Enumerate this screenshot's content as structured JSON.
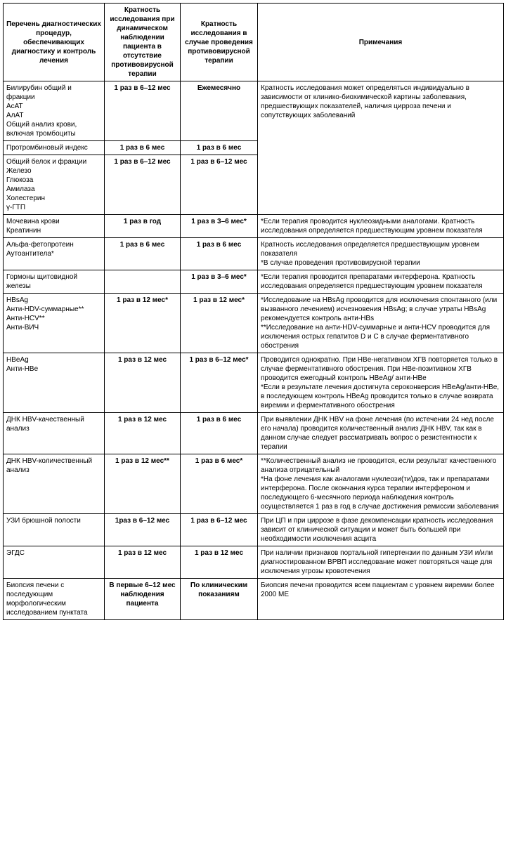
{
  "headers": {
    "h1": "Перечень диагностических процедур, обеспечивающих диагностику и контроль лечения",
    "h2": "Кратность исследования при динамическом наблюдении пациента в отсутствие противовирусной терапии",
    "h3": "Кратность исследования в случае проведения противовирусной терапии",
    "h4": "Примечания"
  },
  "rows": [
    {
      "c1": "Билирубин общий и фракции\nАсАТ\nАлАТ\nОбщий анализ крови, включая тромбоциты",
      "c2": "1 раз в 6–12 мес",
      "c3": "Ежемесячно",
      "c4": "Кратность исследования может определяться индивидуально в зависимости от клинико-биохимической картины заболевания, предшествующих показателей, наличия цирроза печени и сопутствующих заболеваний",
      "rowspan4": 3
    },
    {
      "c1": "Протромбиновый индекс",
      "c2": "1 раз в 6 мес",
      "c3": "1 раз в 6 мес"
    },
    {
      "c1": "Общий белок и фракции\nЖелезо\nГлюкоза\nАмилаза\nХолестерин\nγ-ГТП",
      "c2": "1 раз в 6–12 мес",
      "c3": "1 раз в 6–12 мес"
    },
    {
      "c1": "Мочевина крови\nКреатинин",
      "c2": "1 раз в год",
      "c3": "1 раз в 3–6 мес*",
      "c4": "*Если терапия проводится нуклеозидными аналогами. Кратность исследования определяется предшествующим уровнем показателя"
    },
    {
      "c1": "Альфа-фетопротеин\nАутоантитела*",
      "c2": "1 раз в 6 мес",
      "c3": "1 раз в 6 мес",
      "c4": "Кратность исследования определяется предшествующим уровнем показателя\n*В случае проведения противовирусной терапии"
    },
    {
      "c1": "Гормоны щитовидной железы",
      "c2": "",
      "c3": "1 раз в 3–6 мес*",
      "c4": "*Если терапия проводится препаратами интерферона. Кратность исследования определяется предшествующим уровнем показателя"
    },
    {
      "c1": "HBsAg\nАнти-HDV-суммарные**\nАнти-HCV**\nАнти-ВИЧ",
      "c2": "1 раз в 12 мес*",
      "c3": "1 раз в 12 мес*",
      "c4": "*Исследование на HBsAg проводится для исключения спонтанного (или вызванного лечением) исчезновения HBsAg; в случае утраты HBsAg рекомендуется контроль анти-HBs\n**Исследование на анти-HDV-суммарные и анти-HCV проводится для исключения острых гепатитов D и C в случае ферментативного обострения"
    },
    {
      "c1": "HBeAg\nАнти-HBe",
      "c2": "1 раз в 12 мес",
      "c3": "1 раз в 6–12 мес*",
      "c4": "Проводится однократно. При HBe-негативном ХГВ повторяется только в случае ферментативного обострения. При HBe-позитивном ХГВ проводится ежегодный контроль HBeAg/ анти-HBe\n*Если в результате лечения достигнута сероконверсия HBeAg/анти-HBe, в последующем контроль HBeAg проводится только в случае возврата виремии и ферментативного обострения"
    },
    {
      "c1": "ДНК HBV-качественный анализ",
      "c2": "1 раз в 12 мес",
      "c3": "1 раз в 6 мес",
      "c4": "При выявлении ДНК HBV на фоне лечения (по истечении 24 нед после его начала) проводится количественный анализ ДНК HBV, так как в данном случае следует рассматривать вопрос о резистентности к терапии"
    },
    {
      "c1": "ДНК HBV-количественный анализ",
      "c2": "1 раз в 12 мес**",
      "c3": "1 раз в 6 мес*",
      "c4": "**Количественный анализ не проводится, если результат качественного анализа отрицательный\n*На фоне лечения как аналогами нуклеози(ти)дов, так и препаратами интерферона. После окончания курса терапии интерфероном и последующего 6-месячного периода наблюдения контроль осуществляется 1 раз в год в случае достижения ремиссии заболевания"
    },
    {
      "c1": "УЗИ брюшной полости",
      "c2": "1раз в 6–12 мес",
      "c3": "1 раз в 6–12 мес",
      "c4": "При ЦП и при циррозе в фазе декомпенсации кратность исследования зависит от клинической ситуации и может быть большей при необходимости исключения асцита"
    },
    {
      "c1": "ЭГДС",
      "c2": "1 раз в 12 мес",
      "c3": "1 раз в 12 мес",
      "c4": "При наличии признаков портальной гипертензии по данным УЗИ и/или диагностированном ВРВП исследование может повторяться чаще для исключения угрозы кровотечения"
    },
    {
      "c1": "Биопсия печени с последующим морфологическим исследованием пунктата",
      "c2": "В первые 6–12 мес наблюдения пациента",
      "c3": "По клиническим показаниям",
      "c4": "Биопсия печени проводится всем пациентам с уровнем виремии более 2000 МЕ"
    }
  ]
}
